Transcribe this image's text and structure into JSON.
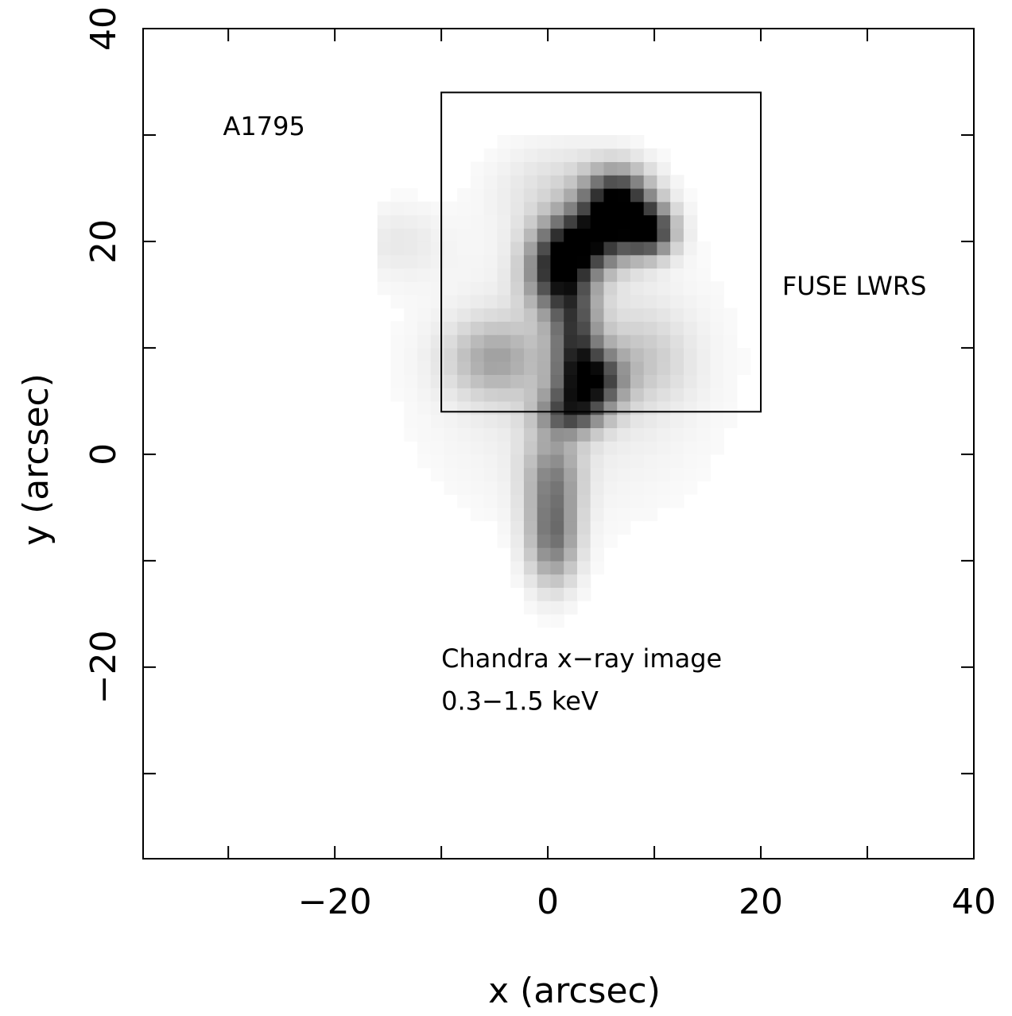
{
  "chart_data": {
    "type": "heatmap",
    "title": "",
    "xlabel": "x (arcsec)",
    "ylabel": "y (arcsec)",
    "xlim": [
      -38,
      40
    ],
    "ylim": [
      -38,
      40
    ],
    "x_ticks": [
      -20,
      0,
      20,
      40
    ],
    "y_ticks": [
      -20,
      0,
      20,
      40
    ],
    "x_tick_labels": [
      "−20",
      "0",
      "20",
      "40"
    ],
    "y_tick_labels": [
      "−20",
      "0",
      "20",
      "40"
    ],
    "grid": false,
    "colormap": "grayscale (white=low, black=high)",
    "annotations": [
      {
        "name": "cluster",
        "text": "A1795",
        "x": -30.5,
        "y": 30
      },
      {
        "name": "aperture",
        "text": "FUSE LWRS",
        "x": 22,
        "y": 15
      },
      {
        "name": "image-line1",
        "text": "Chandra x−ray image",
        "x": -10,
        "y": -20
      },
      {
        "name": "image-line2",
        "text": "0.3−1.5 keV",
        "x": -10,
        "y": -24
      }
    ],
    "aperture_box": {
      "x": [
        -10,
        20
      ],
      "y": [
        4,
        34
      ]
    },
    "emission_blobs": [
      {
        "x": 6.5,
        "y": 23.5,
        "sx": 2.2,
        "sy": 2.2,
        "amp": 1.0
      },
      {
        "x": 9.5,
        "y": 21.0,
        "sx": 1.6,
        "sy": 1.6,
        "amp": 0.85
      },
      {
        "x": 3.5,
        "y": 20.0,
        "sx": 2.5,
        "sy": 2.0,
        "amp": 0.8
      },
      {
        "x": 1.0,
        "y": 17.0,
        "sx": 2.0,
        "sy": 2.5,
        "amp": 0.8
      },
      {
        "x": 2.5,
        "y": 11.5,
        "sx": 1.5,
        "sy": 3.0,
        "amp": 0.6
      },
      {
        "x": 4.0,
        "y": 7.0,
        "sx": 2.0,
        "sy": 2.0,
        "amp": 0.85
      },
      {
        "x": 2.0,
        "y": 4.0,
        "sx": 2.0,
        "sy": 1.5,
        "amp": 0.55
      },
      {
        "x": 0.5,
        "y": -2.0,
        "sx": 1.8,
        "sy": 3.0,
        "amp": 0.4
      },
      {
        "x": 0.5,
        "y": -8.0,
        "sx": 1.6,
        "sy": 3.0,
        "amp": 0.5
      },
      {
        "x": -5.0,
        "y": 9.0,
        "sx": 3.0,
        "sy": 2.5,
        "amp": 0.3
      },
      {
        "x": 9.0,
        "y": 9.0,
        "sx": 3.0,
        "sy": 3.0,
        "amp": 0.15
      },
      {
        "x": 1.0,
        "y": 25.0,
        "sx": 4.0,
        "sy": 3.0,
        "amp": 0.12
      },
      {
        "x": 2.0,
        "y": 8.0,
        "sx": 9.0,
        "sy": 9.0,
        "amp": 0.1
      },
      {
        "x": -14.0,
        "y": 20.0,
        "sx": 3.0,
        "sy": 2.5,
        "amp": 0.08
      }
    ]
  }
}
